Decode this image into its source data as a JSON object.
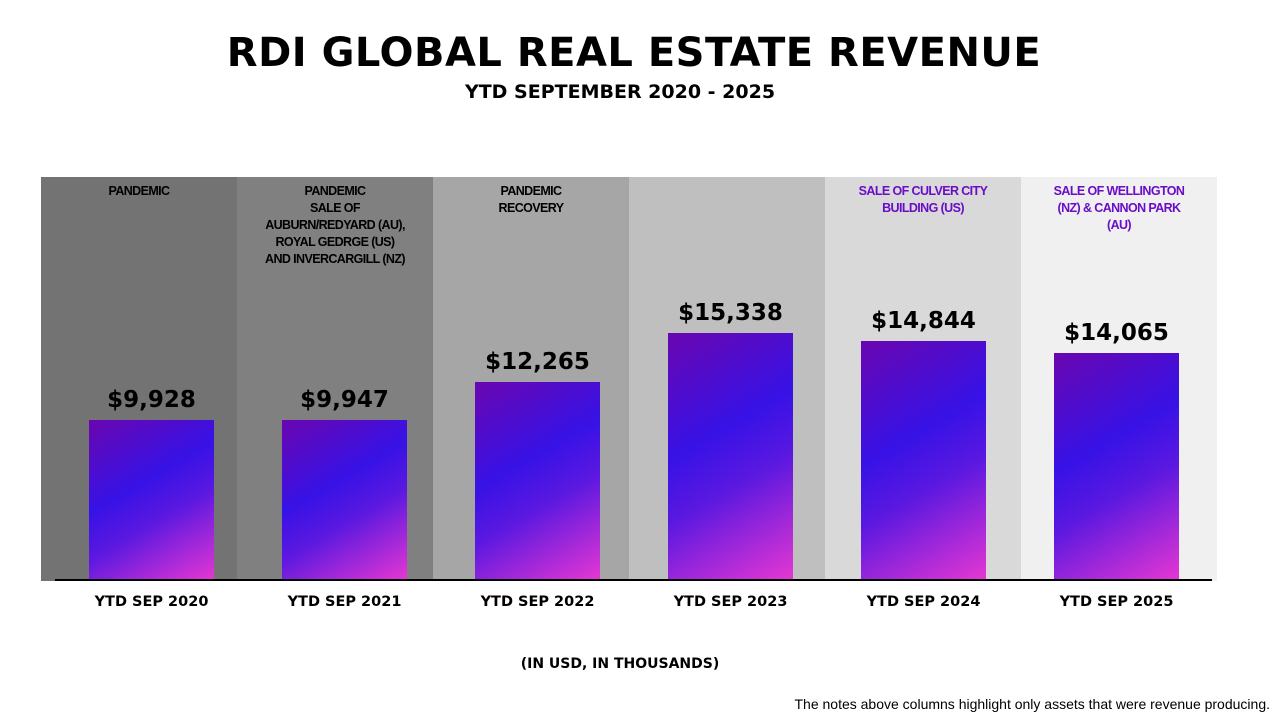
{
  "chart_data": {
    "type": "bar",
    "title": "RDI GLOBAL REAL ESTATE REVENUE",
    "subtitle": "YTD SEPTEMBER 2020 - 2025",
    "categories": [
      "YTD SEP 2020",
      "YTD SEP 2021",
      "YTD SEP 2022",
      "YTD SEP 2023",
      "YTD SEP 2024",
      "YTD SEP 2025"
    ],
    "values": [
      9928,
      9947,
      12265,
      15338,
      14844,
      14065
    ],
    "data_labels": [
      "$9,928",
      "$9,947",
      "$12,265",
      "$15,338",
      "$14,844",
      "$14,065"
    ],
    "annotations": [
      "PANDEMIC",
      "PANDEMIC\nSALE OF\nAUBURN/REDYARD (AU),\nROYAL GEDRGE (US)\nAND INVERCARGILL (NZ)",
      "PANDEMIC\nRECOVERY",
      "",
      "SALE OF CULVER CITY\nBUILDING (US)",
      "SALE OF WELLINGTON\n(NZ) & CANNON PARK\n(AU)"
    ],
    "annotation_colors": [
      "#000000",
      "#000000",
      "#000000",
      "#000000",
      "#6a0dc8",
      "#6a0dc8"
    ],
    "band_colors": [
      "#737373",
      "#808080",
      "#a6a6a6",
      "#bfbfbf",
      "#d9d9d9",
      "#f0f0f0"
    ],
    "xlabel": "(IN USD,  IN THOUSANDS)",
    "ylabel": "",
    "ylim": [
      0,
      25000
    ],
    "grid": false,
    "legend": "none",
    "bar_gradient": [
      "#6a06b0",
      "#3712e6",
      "#e637d2"
    ]
  },
  "footnote": "The notes above columns highlight only assets that were revenue producing."
}
